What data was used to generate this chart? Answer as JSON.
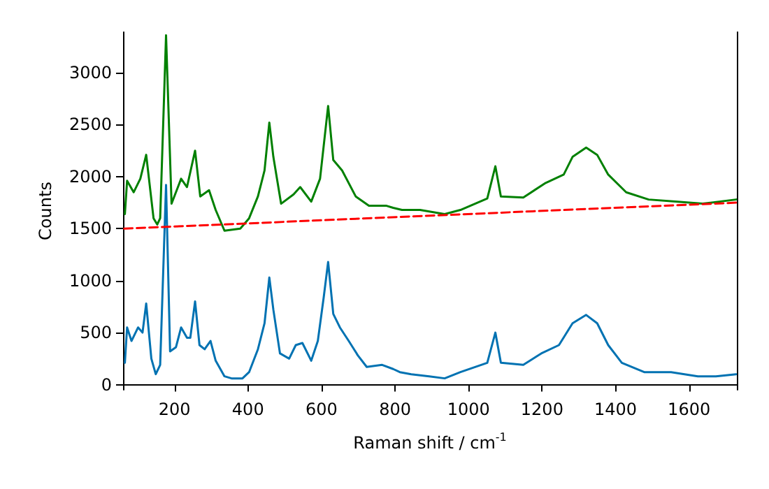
{
  "chart_data": {
    "type": "line",
    "xlabel": "Raman shift / cm$^{-1}$",
    "ylabel": "Counts",
    "xlim": [
      60,
      1730
    ],
    "ylim": [
      -50,
      3390
    ],
    "xticks": [
      200,
      400,
      600,
      800,
      1000,
      1200,
      1400,
      1600
    ],
    "yticks": [
      0,
      500,
      1000,
      1500,
      2000,
      2500,
      3000
    ],
    "marker": "none",
    "series": [
      {
        "color": "#0072b2",
        "x": [
          65,
          71,
          83,
          101,
          113,
          123,
          137,
          149,
          161,
          177,
          188,
          204,
          218,
          234,
          243,
          256,
          268,
          282,
          298,
          312,
          336,
          355,
          385,
          403,
          427,
          445,
          458,
          469,
          487,
          512,
          530,
          548,
          572,
          590,
          606,
          618,
          632,
          650,
          674,
          699,
          723,
          765,
          795,
          813,
          844,
          893,
          935,
          978,
          1051,
          1073,
          1088,
          1149,
          1198,
          1246,
          1283,
          1320,
          1350,
          1380,
          1417,
          1478,
          1551,
          1624,
          1673,
          1728
        ],
        "values": [
          210,
          550,
          420,
          550,
          500,
          780,
          250,
          100,
          190,
          1920,
          320,
          360,
          550,
          450,
          450,
          800,
          380,
          340,
          420,
          230,
          80,
          60,
          60,
          120,
          340,
          590,
          1030,
          720,
          300,
          250,
          380,
          400,
          230,
          420,
          840,
          1180,
          680,
          550,
          420,
          280,
          170,
          190,
          150,
          120,
          100,
          80,
          60,
          120,
          210,
          500,
          210,
          190,
          300,
          380,
          590,
          670,
          590,
          380,
          210,
          120,
          120,
          80,
          80,
          100
        ]
      },
      {
        "color": "#008000",
        "x": [
          65,
          71,
          89,
          107,
          123,
          143,
          153,
          161,
          177,
          192,
          218,
          234,
          256,
          270,
          294,
          312,
          336,
          379,
          403,
          427,
          445,
          458,
          469,
          490,
          524,
          542,
          572,
          596,
          618,
          632,
          656,
          693,
          729,
          777,
          795,
          819,
          868,
          935,
          978,
          1051,
          1073,
          1088,
          1149,
          1210,
          1259,
          1283,
          1320,
          1350,
          1380,
          1429,
          1490,
          1563,
          1637,
          1728
        ],
        "values": [
          1640,
          1960,
          1850,
          1980,
          2210,
          1600,
          1540,
          1600,
          3360,
          1740,
          1980,
          1900,
          2250,
          1810,
          1870,
          1680,
          1480,
          1500,
          1600,
          1810,
          2060,
          2520,
          2190,
          1740,
          1830,
          1900,
          1760,
          1980,
          2680,
          2160,
          2060,
          1810,
          1720,
          1720,
          1700,
          1680,
          1680,
          1640,
          1680,
          1790,
          2100,
          1810,
          1800,
          1940,
          2020,
          2190,
          2280,
          2210,
          2020,
          1850,
          1780,
          1760,
          1740,
          1780
        ]
      },
      {
        "color": "#ff0000",
        "line_style": "dashed",
        "x": [
          63,
          1729
        ],
        "values": [
          1500,
          1750
        ]
      }
    ]
  }
}
